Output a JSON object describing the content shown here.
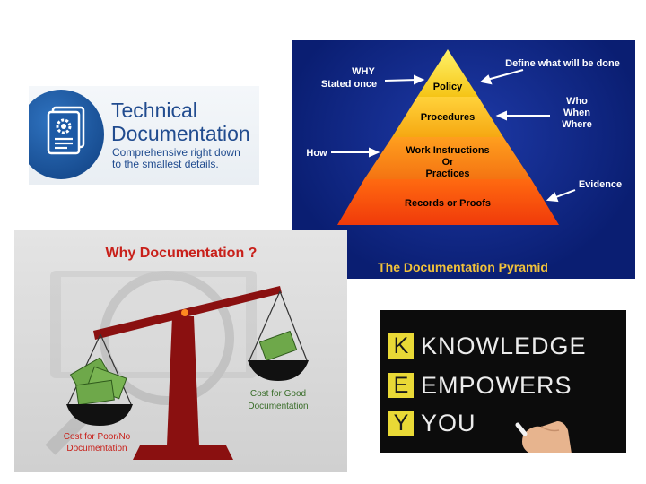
{
  "technical_card": {
    "title_line1": "Technical",
    "title_line2": "Documentation",
    "subtitle_line1": "Comprehensive right down",
    "subtitle_line2": "to the smallest details."
  },
  "pyramid_card": {
    "title": "The Documentation Pyramid",
    "levels": [
      "Policy",
      "Procedures",
      "Work Instructions",
      "Or",
      "Practices",
      "Records or Proofs"
    ],
    "labels": {
      "why": "WHY",
      "stated_once": "Stated once",
      "define": "Define what will be done",
      "who": "Who",
      "when": "When",
      "where": "Where",
      "how": "How",
      "evidence": "Evidence"
    }
  },
  "why_card": {
    "title": "Why Documentation ?",
    "good_line1": "Cost for Good",
    "good_line2": "Documentation",
    "poor_line1": "Cost for Poor/No",
    "poor_line2": "Documentation"
  },
  "key_card": {
    "rows": [
      {
        "letter": "K",
        "word": "KNOWLEDGE"
      },
      {
        "letter": "E",
        "word": "EMPOWERS"
      },
      {
        "letter": "Y",
        "word": "YOU"
      }
    ]
  },
  "colors": {
    "tech_blue": "#214c8f",
    "pyramid_bg": "#0a1e72",
    "why_title_red": "#c8201a",
    "scale_red": "#8a1010",
    "good_text_green": "#3a6e2a",
    "poor_text_red": "#c8201a",
    "key_yellow": "#e9d936"
  }
}
